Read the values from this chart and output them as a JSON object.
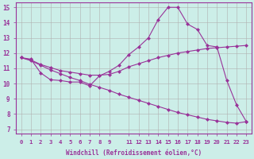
{
  "title": "",
  "xlabel": "Windchill (Refroidissement éolien,°C)",
  "background_color": "#cceee8",
  "line_color": "#993399",
  "xlim": [
    0,
    23
  ],
  "ylim": [
    7,
    15
  ],
  "yticks": [
    7,
    8,
    9,
    10,
    11,
    12,
    13,
    14,
    15
  ],
  "xticks": [
    0,
    1,
    2,
    3,
    4,
    5,
    6,
    7,
    8,
    9,
    11,
    12,
    13,
    14,
    15,
    16,
    17,
    18,
    19,
    20,
    21,
    22,
    23
  ],
  "line1_y": [
    11.7,
    11.6,
    10.7,
    10.25,
    10.2,
    10.1,
    10.1,
    9.85,
    10.5,
    10.8,
    11.2,
    11.9,
    12.4,
    13.0,
    14.2,
    15.0,
    15.0,
    13.9,
    13.55,
    12.5,
    12.4,
    10.2,
    8.6,
    7.5
  ],
  "line2_y": [
    11.7,
    11.55,
    11.25,
    11.05,
    10.85,
    10.75,
    10.65,
    10.55,
    10.55,
    10.6,
    10.8,
    11.1,
    11.3,
    11.5,
    11.7,
    11.85,
    12.0,
    12.1,
    12.2,
    12.3,
    12.35,
    12.4,
    12.45,
    12.5
  ],
  "line3_y": [
    11.7,
    11.5,
    11.2,
    10.9,
    10.65,
    10.4,
    10.2,
    9.95,
    9.75,
    9.55,
    9.3,
    9.1,
    8.9,
    8.7,
    8.5,
    8.3,
    8.1,
    7.95,
    7.8,
    7.65,
    7.55,
    7.45,
    7.4,
    7.5
  ],
  "grid_color": "#b0b0b0",
  "marker": "D",
  "markersize": 2.5,
  "linewidth": 0.8
}
